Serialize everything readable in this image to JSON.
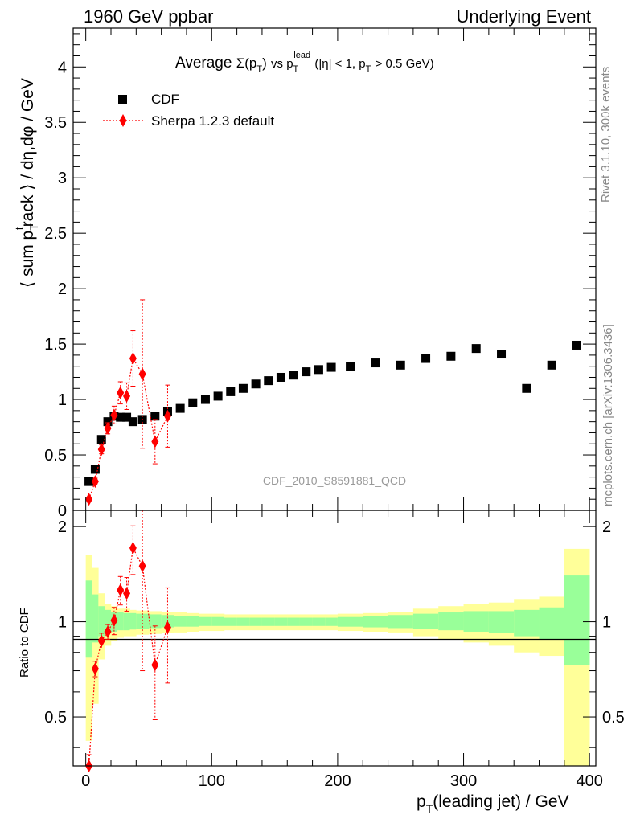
{
  "header": {
    "left": "1960 GeV ppbar",
    "right": "Underlying Event"
  },
  "side": {
    "rivet": "Rivet 3.1.10,  300k events",
    "mcplots": "mcplots.cern.ch [arXiv:1306.3436]"
  },
  "chart_data": [
    {
      "type": "scatter",
      "title": "Average Σ(pT) vs pT lead (|η| < 1, pT > 0.5 GeV)",
      "title_parts": {
        "average": "Average",
        "sigma": "Σ(p",
        "sub_t": "T",
        "close": ")",
        "vs": "vs p",
        "sup_lead": "lead",
        "cond": "(|η| < 1, p",
        "cond_rest": "> 0.5 GeV)"
      },
      "ylabel": "⟨ sum pTtrack ⟩ / dη,dφ / GeV",
      "ylabel_parts": {
        "a": "⟨ sum p",
        "sub": "T",
        "sup": "t",
        "b": "rack ⟩ / dη,dφ / GeV"
      },
      "xlim": [
        -10,
        405
      ],
      "ylim": [
        0,
        4.35
      ],
      "yticks": [
        "0",
        "0.5",
        "1",
        "1.5",
        "2",
        "2.5",
        "3",
        "3.5",
        "4"
      ],
      "watermark": "CDF_2010_S8591881_QCD",
      "legend": {
        "placement": "top-left",
        "cdf": "CDF",
        "sherpa": "Sherpa 1.2.3 default"
      },
      "series": [
        {
          "name": "CDF",
          "x": [
            2.5,
            7.5,
            12.5,
            17.5,
            22.5,
            27.5,
            32.5,
            37.5,
            45,
            55,
            65,
            75,
            85,
            95,
            105,
            115,
            125,
            135,
            145,
            155,
            165,
            175,
            185,
            195,
            210,
            230,
            250,
            270,
            290,
            310,
            330,
            350,
            370,
            390
          ],
          "y": [
            0.26,
            0.37,
            0.64,
            0.8,
            0.85,
            0.84,
            0.84,
            0.8,
            0.82,
            0.85,
            0.89,
            0.92,
            0.97,
            1.0,
            1.03,
            1.07,
            1.1,
            1.14,
            1.17,
            1.2,
            1.22,
            1.25,
            1.27,
            1.29,
            1.3,
            1.33,
            1.31,
            1.37,
            1.39,
            1.46,
            1.41,
            1.1,
            1.31,
            1.49
          ]
        },
        {
          "name": "Sherpa 1.2.3 default",
          "x": [
            2.5,
            7.5,
            12.5,
            17.5,
            22.5,
            27.5,
            32.5,
            37.5,
            45,
            55,
            65
          ],
          "y": [
            0.1,
            0.26,
            0.55,
            0.74,
            0.86,
            1.06,
            1.03,
            1.37,
            1.23,
            0.62,
            0.85
          ],
          "err": [
            0.02,
            0.03,
            0.04,
            0.05,
            0.08,
            0.1,
            0.12,
            0.25,
            0.67,
            0.2,
            0.28
          ]
        }
      ]
    },
    {
      "type": "scatter",
      "ylabel": "Ratio to CDF",
      "xlabel": "pT(leading jet) / GeV",
      "xlabel_parts": {
        "a": "p",
        "sub": "T",
        "b": "(leading jet) / GeV"
      },
      "xlim": [
        -10,
        405
      ],
      "ylim": [
        0.35,
        2.25
      ],
      "xticks": [
        "0",
        "100",
        "200",
        "300",
        "400"
      ],
      "yticks": [
        "0.5",
        "1",
        "2"
      ],
      "bands": {
        "edges": [
          0,
          5,
          10,
          15,
          20,
          25,
          30,
          35,
          40,
          50,
          60,
          70,
          80,
          90,
          100,
          110,
          120,
          130,
          140,
          150,
          160,
          170,
          180,
          190,
          200,
          220,
          240,
          260,
          280,
          300,
          320,
          340,
          360,
          380,
          400
        ],
        "inner_hi": [
          1.35,
          1.22,
          1.12,
          1.09,
          1.07,
          1.07,
          1.065,
          1.065,
          1.06,
          1.055,
          1.05,
          1.045,
          1.04,
          1.035,
          1.035,
          1.03,
          1.03,
          1.03,
          1.03,
          1.03,
          1.03,
          1.03,
          1.03,
          1.03,
          1.035,
          1.04,
          1.05,
          1.06,
          1.07,
          1.08,
          1.08,
          1.09,
          1.11,
          1.4
        ],
        "inner_lo": [
          0.77,
          0.86,
          0.9,
          0.92,
          0.93,
          0.94,
          0.94,
          0.945,
          0.95,
          0.955,
          0.96,
          0.965,
          0.965,
          0.97,
          0.97,
          0.97,
          0.97,
          0.97,
          0.97,
          0.97,
          0.97,
          0.97,
          0.97,
          0.97,
          0.965,
          0.96,
          0.955,
          0.95,
          0.94,
          0.93,
          0.92,
          0.9,
          0.88,
          0.73
        ],
        "outer_hi": [
          1.63,
          1.48,
          1.23,
          1.14,
          1.12,
          1.1,
          1.1,
          1.09,
          1.085,
          1.08,
          1.075,
          1.07,
          1.065,
          1.06,
          1.06,
          1.055,
          1.055,
          1.055,
          1.055,
          1.055,
          1.055,
          1.055,
          1.055,
          1.055,
          1.06,
          1.065,
          1.075,
          1.1,
          1.12,
          1.14,
          1.15,
          1.18,
          1.2,
          1.7
        ],
        "outer_lo": [
          0.42,
          0.55,
          0.76,
          0.84,
          0.87,
          0.89,
          0.9,
          0.9,
          0.91,
          0.915,
          0.92,
          0.925,
          0.93,
          0.935,
          0.935,
          0.94,
          0.94,
          0.94,
          0.94,
          0.94,
          0.94,
          0.94,
          0.94,
          0.94,
          0.935,
          0.93,
          0.925,
          0.9,
          0.88,
          0.86,
          0.84,
          0.8,
          0.78,
          0.35
        ]
      },
      "series": [
        {
          "name": "Sherpa / CDF",
          "x": [
            2.5,
            7.5,
            12.5,
            17.5,
            22.5,
            27.5,
            32.5,
            37.5,
            45,
            55,
            65
          ],
          "y": [
            0.35,
            0.71,
            0.87,
            0.93,
            1.01,
            1.26,
            1.23,
            1.71,
            1.5,
            0.73,
            0.96
          ],
          "err": [
            0.03,
            0.04,
            0.05,
            0.05,
            0.1,
            0.13,
            0.15,
            0.3,
            0.8,
            0.24,
            0.32
          ]
        }
      ]
    }
  ],
  "colors": {
    "cdf": "#000000",
    "sherpa": "#ff0000",
    "band_inner": "#99ff99",
    "band_outer": "#ffff99",
    "watermark": "#999999",
    "side_text": "#888888"
  }
}
